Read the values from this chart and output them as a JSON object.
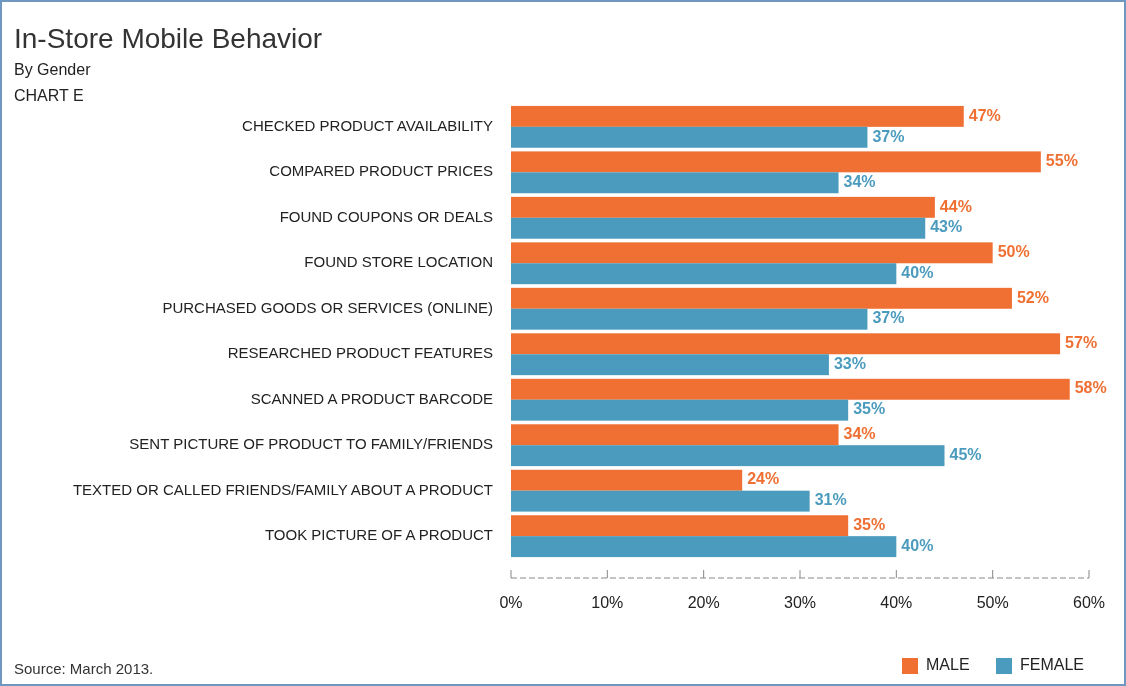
{
  "chart_data": {
    "type": "bar",
    "orientation": "horizontal",
    "title": "In-Store Mobile Behavior",
    "subtitle": "By Gender",
    "annotations": [
      "CHART E",
      "Source: March 2013."
    ],
    "categories": [
      "CHECKED PRODUCT AVAILABILITY",
      "COMPARED PRODUCT PRICES",
      "FOUND COUPONS OR DEALS",
      "FOUND STORE LOCATION",
      "PURCHASED GOODS OR SERVICES (ONLINE)",
      "RESEARCHED PRODUCT FEATURES",
      "SCANNED A PRODUCT BARCODE",
      "SENT PICTURE OF PRODUCT TO FAMILY/FRIENDS",
      "TEXTED OR CALLED FRIENDS/FAMILY ABOUT A PRODUCT",
      "TOOK PICTURE OF A PRODUCT"
    ],
    "series": [
      {
        "name": "MALE",
        "color": "#ef7032",
        "values": [
          47,
          55,
          44,
          50,
          52,
          57,
          58,
          34,
          24,
          35
        ],
        "value_labels": [
          "47%",
          "55%",
          "44%",
          "50%",
          "52%",
          "57%",
          "58%",
          "34%",
          "24%",
          "35%"
        ]
      },
      {
        "name": "FEMALE",
        "color": "#4a9bbd",
        "values": [
          37,
          34,
          43,
          40,
          37,
          33,
          35,
          45,
          31,
          40
        ],
        "value_labels": [
          "37%",
          "34%",
          "43%",
          "40%",
          "37%",
          "33%",
          "35%",
          "45%",
          "31%",
          "40%"
        ]
      }
    ],
    "xlim": [
      0,
      60
    ],
    "xticks": [
      {
        "value": 0,
        "label": "0%"
      },
      {
        "value": 10,
        "label": "10%"
      },
      {
        "value": 20,
        "label": "20%"
      },
      {
        "value": 30,
        "label": "30%"
      },
      {
        "value": 40,
        "label": "40%"
      },
      {
        "value": 50,
        "label": "50%"
      },
      {
        "value": 60,
        "label": "60%"
      }
    ],
    "legend": "bottom right"
  }
}
